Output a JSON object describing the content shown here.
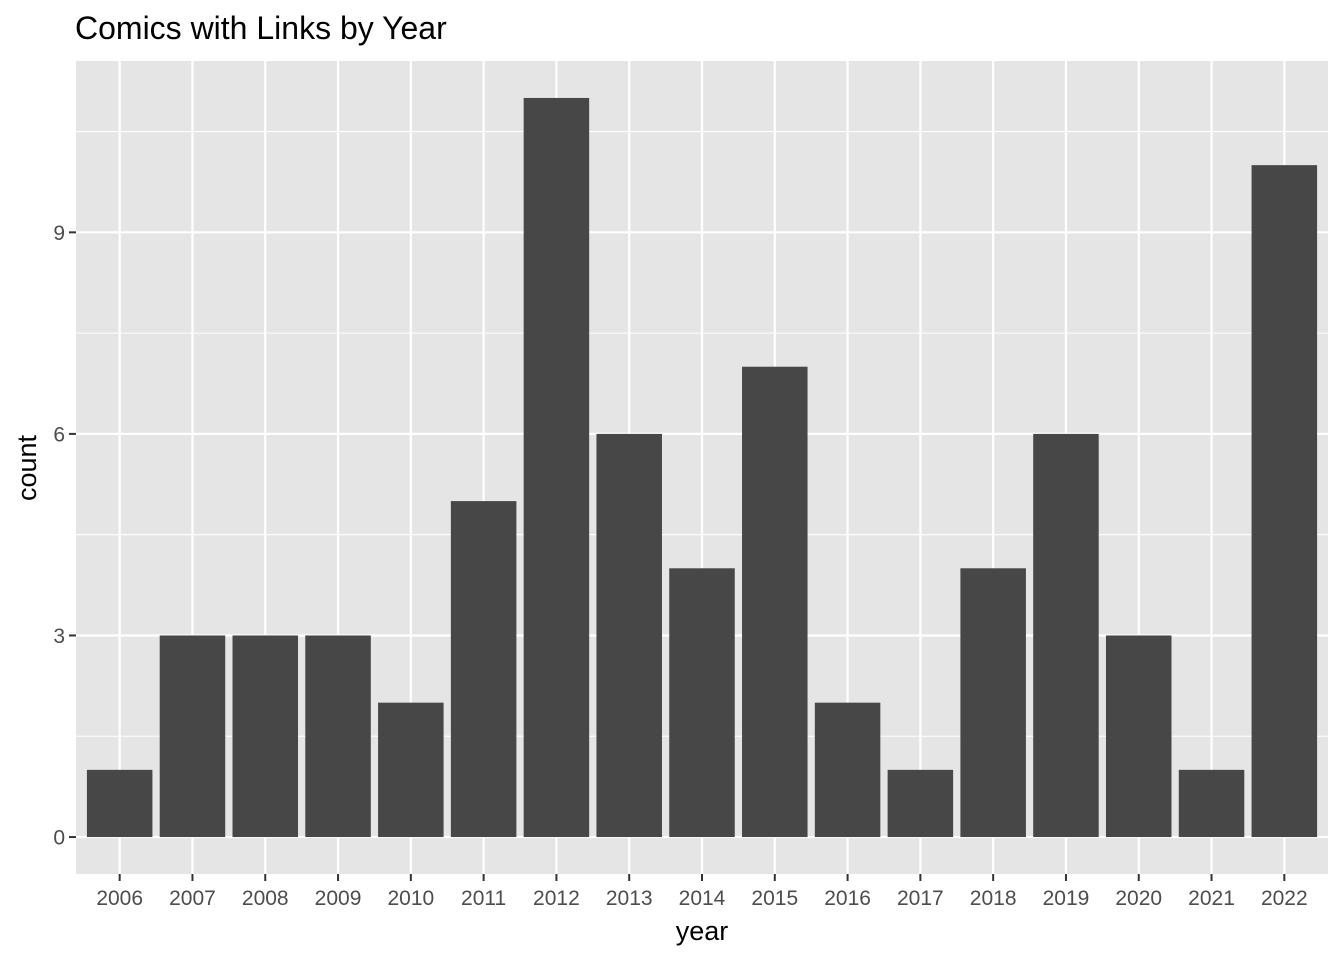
{
  "chart_data": {
    "type": "bar",
    "title": "Comics with Links by Year",
    "xlabel": "year",
    "ylabel": "count",
    "categories": [
      "2006",
      "2007",
      "2008",
      "2009",
      "2010",
      "2011",
      "2012",
      "2013",
      "2014",
      "2015",
      "2016",
      "2017",
      "2018",
      "2019",
      "2020",
      "2021",
      "2022"
    ],
    "values": [
      1,
      3,
      3,
      3,
      2,
      5,
      11,
      6,
      4,
      7,
      2,
      1,
      4,
      6,
      3,
      1,
      10
    ],
    "ylim": [
      -0.55,
      11.55
    ],
    "yticks": [
      0,
      3,
      6,
      9
    ],
    "grid": true,
    "legend": "none",
    "colors": {
      "panel_background": "#e5e5e5",
      "grid_line": "#ffffff",
      "bar_fill": "#474747",
      "tick_mark": "#333333",
      "tick_text": "#4d4d4d"
    }
  }
}
